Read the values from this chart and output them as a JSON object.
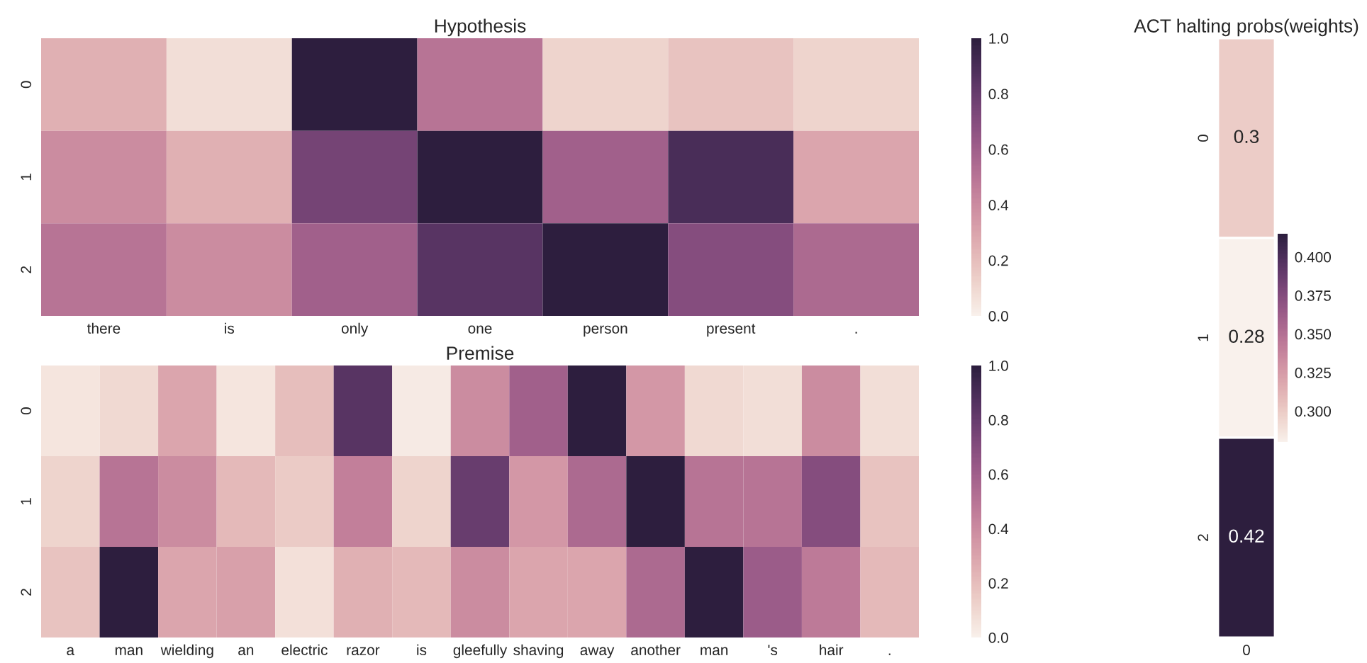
{
  "chart_data": [
    {
      "type": "heatmap",
      "title": "Hypothesis",
      "categories": [
        "there",
        "is",
        "only",
        "one",
        "person",
        "present",
        "."
      ],
      "y_categories": [
        "0",
        "1",
        "2"
      ],
      "cells": [
        [
          0.25,
          0.08,
          1.0,
          0.5,
          0.12,
          0.18,
          0.12
        ],
        [
          0.4,
          0.25,
          0.75,
          1.0,
          0.6,
          0.9,
          0.3
        ],
        [
          0.5,
          0.4,
          0.6,
          0.85,
          1.0,
          0.7,
          0.55
        ]
      ],
      "clim": [
        0,
        1
      ],
      "cticks": [
        {
          "value": 0,
          "label": "0.0"
        },
        {
          "value": 0.2,
          "label": "0.2"
        },
        {
          "value": 0.4,
          "label": "0.4"
        },
        {
          "value": 0.6,
          "label": "0.6"
        },
        {
          "value": 0.8,
          "label": "0.8"
        },
        {
          "value": 1,
          "label": "1.0"
        }
      ]
    },
    {
      "type": "heatmap",
      "title": "Premise",
      "categories": [
        "a",
        "man",
        "wielding",
        "an",
        "electric",
        "razor",
        "is",
        "gleefully",
        "shaving",
        "away",
        "another",
        "man",
        "'s",
        "hair",
        "."
      ],
      "y_categories": [
        "0",
        "1",
        "2"
      ],
      "cells": [
        [
          0.05,
          0.1,
          0.3,
          0.05,
          0.2,
          0.85,
          0.03,
          0.4,
          0.6,
          1.0,
          0.35,
          0.1,
          0.08,
          0.4,
          0.08
        ],
        [
          0.12,
          0.5,
          0.4,
          0.22,
          0.15,
          0.45,
          0.12,
          0.8,
          0.35,
          0.55,
          1.0,
          0.5,
          0.5,
          0.7,
          0.18
        ],
        [
          0.18,
          1.0,
          0.3,
          0.32,
          0.07,
          0.25,
          0.22,
          0.4,
          0.3,
          0.3,
          0.55,
          1.0,
          0.62,
          0.48,
          0.22
        ]
      ],
      "clim": [
        0,
        1
      ],
      "cticks": [
        {
          "value": 0,
          "label": "0.0"
        },
        {
          "value": 0.2,
          "label": "0.2"
        },
        {
          "value": 0.4,
          "label": "0.4"
        },
        {
          "value": 0.6,
          "label": "0.6"
        },
        {
          "value": 0.8,
          "label": "0.8"
        },
        {
          "value": 1,
          "label": "1.0"
        }
      ]
    },
    {
      "type": "heatmap",
      "title": "ACT halting probs(weights)",
      "categories": [
        "0"
      ],
      "y_categories": [
        "0",
        "1",
        "2"
      ],
      "cells": [
        [
          0.3
        ],
        [
          0.28
        ],
        [
          0.42
        ]
      ],
      "data_labels": true,
      "clim": [
        0.28,
        0.415
      ],
      "cticks": [
        {
          "value": 0.3,
          "label": "0.300"
        },
        {
          "value": 0.325,
          "label": "0.325"
        },
        {
          "value": 0.35,
          "label": "0.350"
        },
        {
          "value": 0.375,
          "label": "0.375"
        },
        {
          "value": 0.4,
          "label": "0.400"
        }
      ]
    }
  ]
}
